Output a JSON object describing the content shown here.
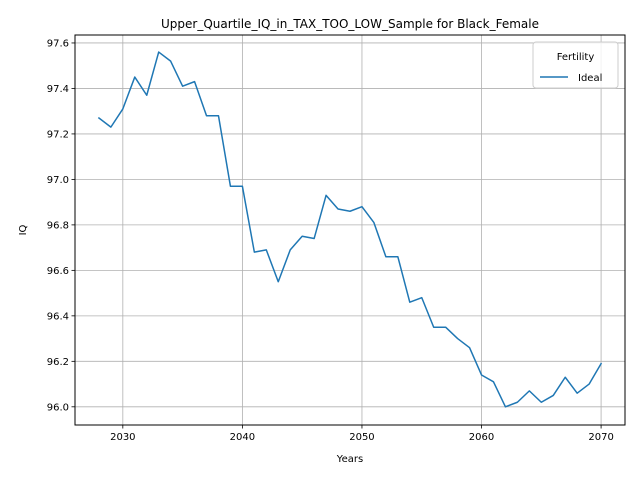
{
  "chart_data": {
    "type": "line",
    "title": "Upper_Quartile_IQ_in_TAX_TOO_LOW_Sample for Black_Female",
    "xlabel": "Years",
    "ylabel": "IQ",
    "xlim": [
      2026,
      2072
    ],
    "ylim": [
      95.92,
      97.635
    ],
    "xticks": [
      2030,
      2040,
      2050,
      2060,
      2070
    ],
    "yticks": [
      96.0,
      96.2,
      96.4,
      96.6,
      96.8,
      97.0,
      97.2,
      97.4,
      97.6
    ],
    "grid": true,
    "legend": {
      "title": "Fertility",
      "position": "top-right"
    },
    "series": [
      {
        "name": "Ideal",
        "color": "#1f77b4",
        "x": [
          2028,
          2029,
          2030,
          2031,
          2032,
          2033,
          2034,
          2035,
          2036,
          2037,
          2038,
          2039,
          2040,
          2041,
          2042,
          2043,
          2044,
          2045,
          2046,
          2047,
          2048,
          2049,
          2050,
          2051,
          2052,
          2053,
          2054,
          2055,
          2056,
          2057,
          2058,
          2059,
          2060,
          2061,
          2062,
          2063,
          2064,
          2065,
          2066,
          2067,
          2068,
          2069,
          2070
        ],
        "values": [
          97.27,
          97.23,
          97.31,
          97.45,
          97.37,
          97.56,
          97.52,
          97.41,
          97.43,
          97.28,
          97.28,
          96.97,
          96.97,
          96.68,
          96.69,
          96.55,
          96.69,
          96.75,
          96.74,
          96.93,
          96.87,
          96.86,
          96.88,
          96.81,
          96.66,
          96.66,
          96.46,
          96.48,
          96.35,
          96.35,
          96.3,
          96.26,
          96.14,
          96.11,
          96.0,
          96.02,
          96.07,
          96.02,
          96.05,
          96.13,
          96.06,
          96.1,
          96.19
        ]
      }
    ]
  }
}
